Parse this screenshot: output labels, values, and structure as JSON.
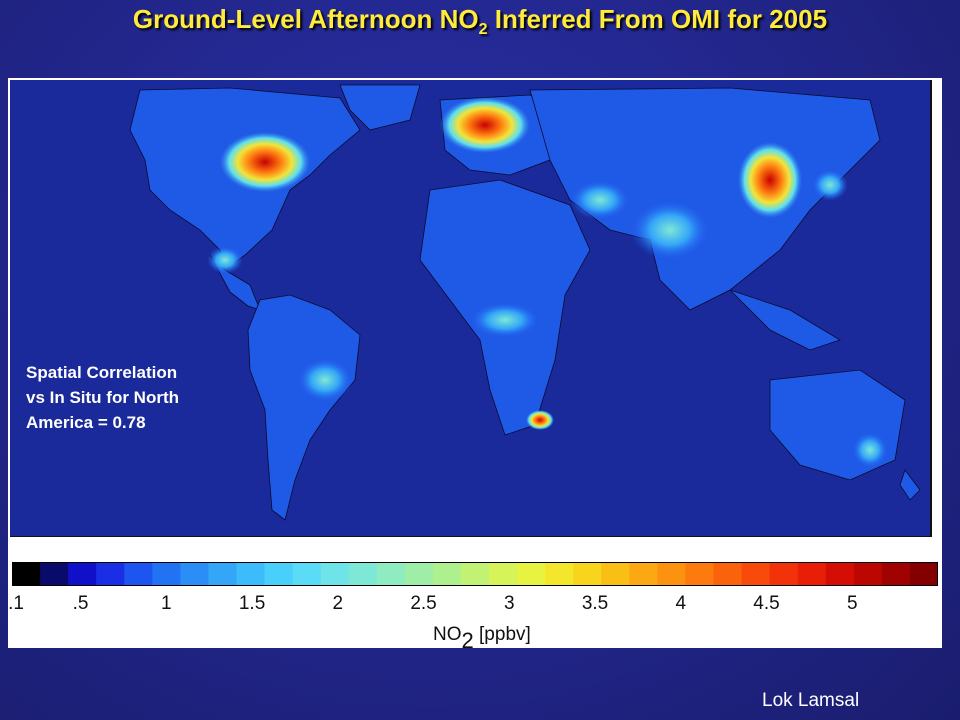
{
  "title": {
    "main": "Ground-Level Afternoon NO",
    "subscript": "2",
    "rest": " Inferred From OMI for 2005"
  },
  "inset_text": [
    "Spatial Correlation",
    "vs In Situ for North",
    "America =  0.78"
  ],
  "colorbar": {
    "ticks": [
      ".1",
      ".5",
      "1",
      "1.5",
      "2",
      "2.5",
      "3",
      "3.5",
      "4",
      "4.5",
      "5"
    ],
    "tick_values": [
      0.1,
      0.5,
      1,
      1.5,
      2,
      2.5,
      3,
      3.5,
      4,
      4.5,
      5
    ],
    "range": [
      0.1,
      5.5
    ],
    "label_main": "NO",
    "label_sub": "2",
    "label_unit": " [ppbv]",
    "colors": [
      "#000000",
      "#0a0a6a",
      "#1010c8",
      "#1a2ee6",
      "#1e54f0",
      "#2272f4",
      "#2a8ef6",
      "#34a6f8",
      "#3cbcfa",
      "#48d0fa",
      "#5adcf6",
      "#6ee4e8",
      "#7ee8d6",
      "#8eecc0",
      "#9eeea8",
      "#aef08e",
      "#c2f274",
      "#d6f45a",
      "#e8f240",
      "#f4e62c",
      "#f8d41c",
      "#fabf14",
      "#fca812",
      "#fc9210",
      "#fc7a0e",
      "#fa620c",
      "#f84a0a",
      "#f23208",
      "#e81e06",
      "#d40e04",
      "#bc0602",
      "#a00202",
      "#840000"
    ]
  },
  "credit": "Lok Lamsal"
}
